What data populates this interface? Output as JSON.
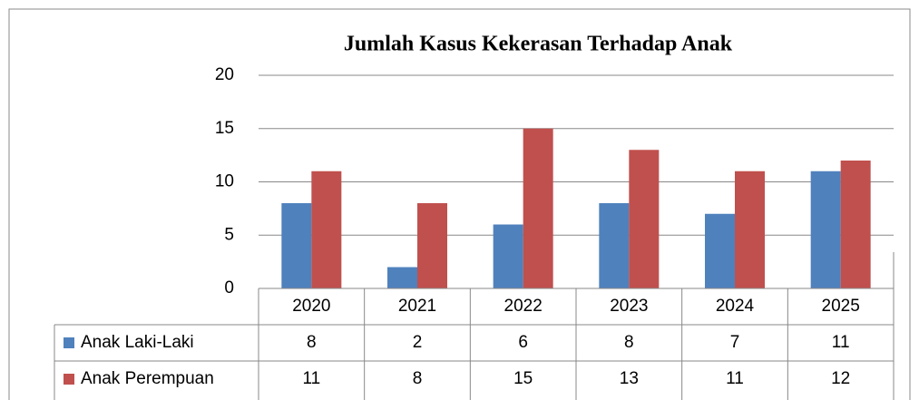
{
  "chart_data": {
    "type": "bar",
    "title": "Jumlah Kasus Kekerasan Terhadap Anak",
    "categories": [
      "2020",
      "2021",
      "2022",
      "2023",
      "2024",
      "2025"
    ],
    "series": [
      {
        "name": "Anak Laki-Laki",
        "color": "#4f81bd",
        "values": [
          8,
          2,
          6,
          8,
          7,
          11
        ]
      },
      {
        "name": "Anak Perempuan",
        "color": "#c0504d",
        "values": [
          11,
          8,
          15,
          13,
          11,
          12
        ]
      }
    ],
    "ylim": [
      0,
      20
    ],
    "yticks": [
      0,
      5,
      10,
      15,
      20
    ],
    "grid": true,
    "data_table": true
  }
}
